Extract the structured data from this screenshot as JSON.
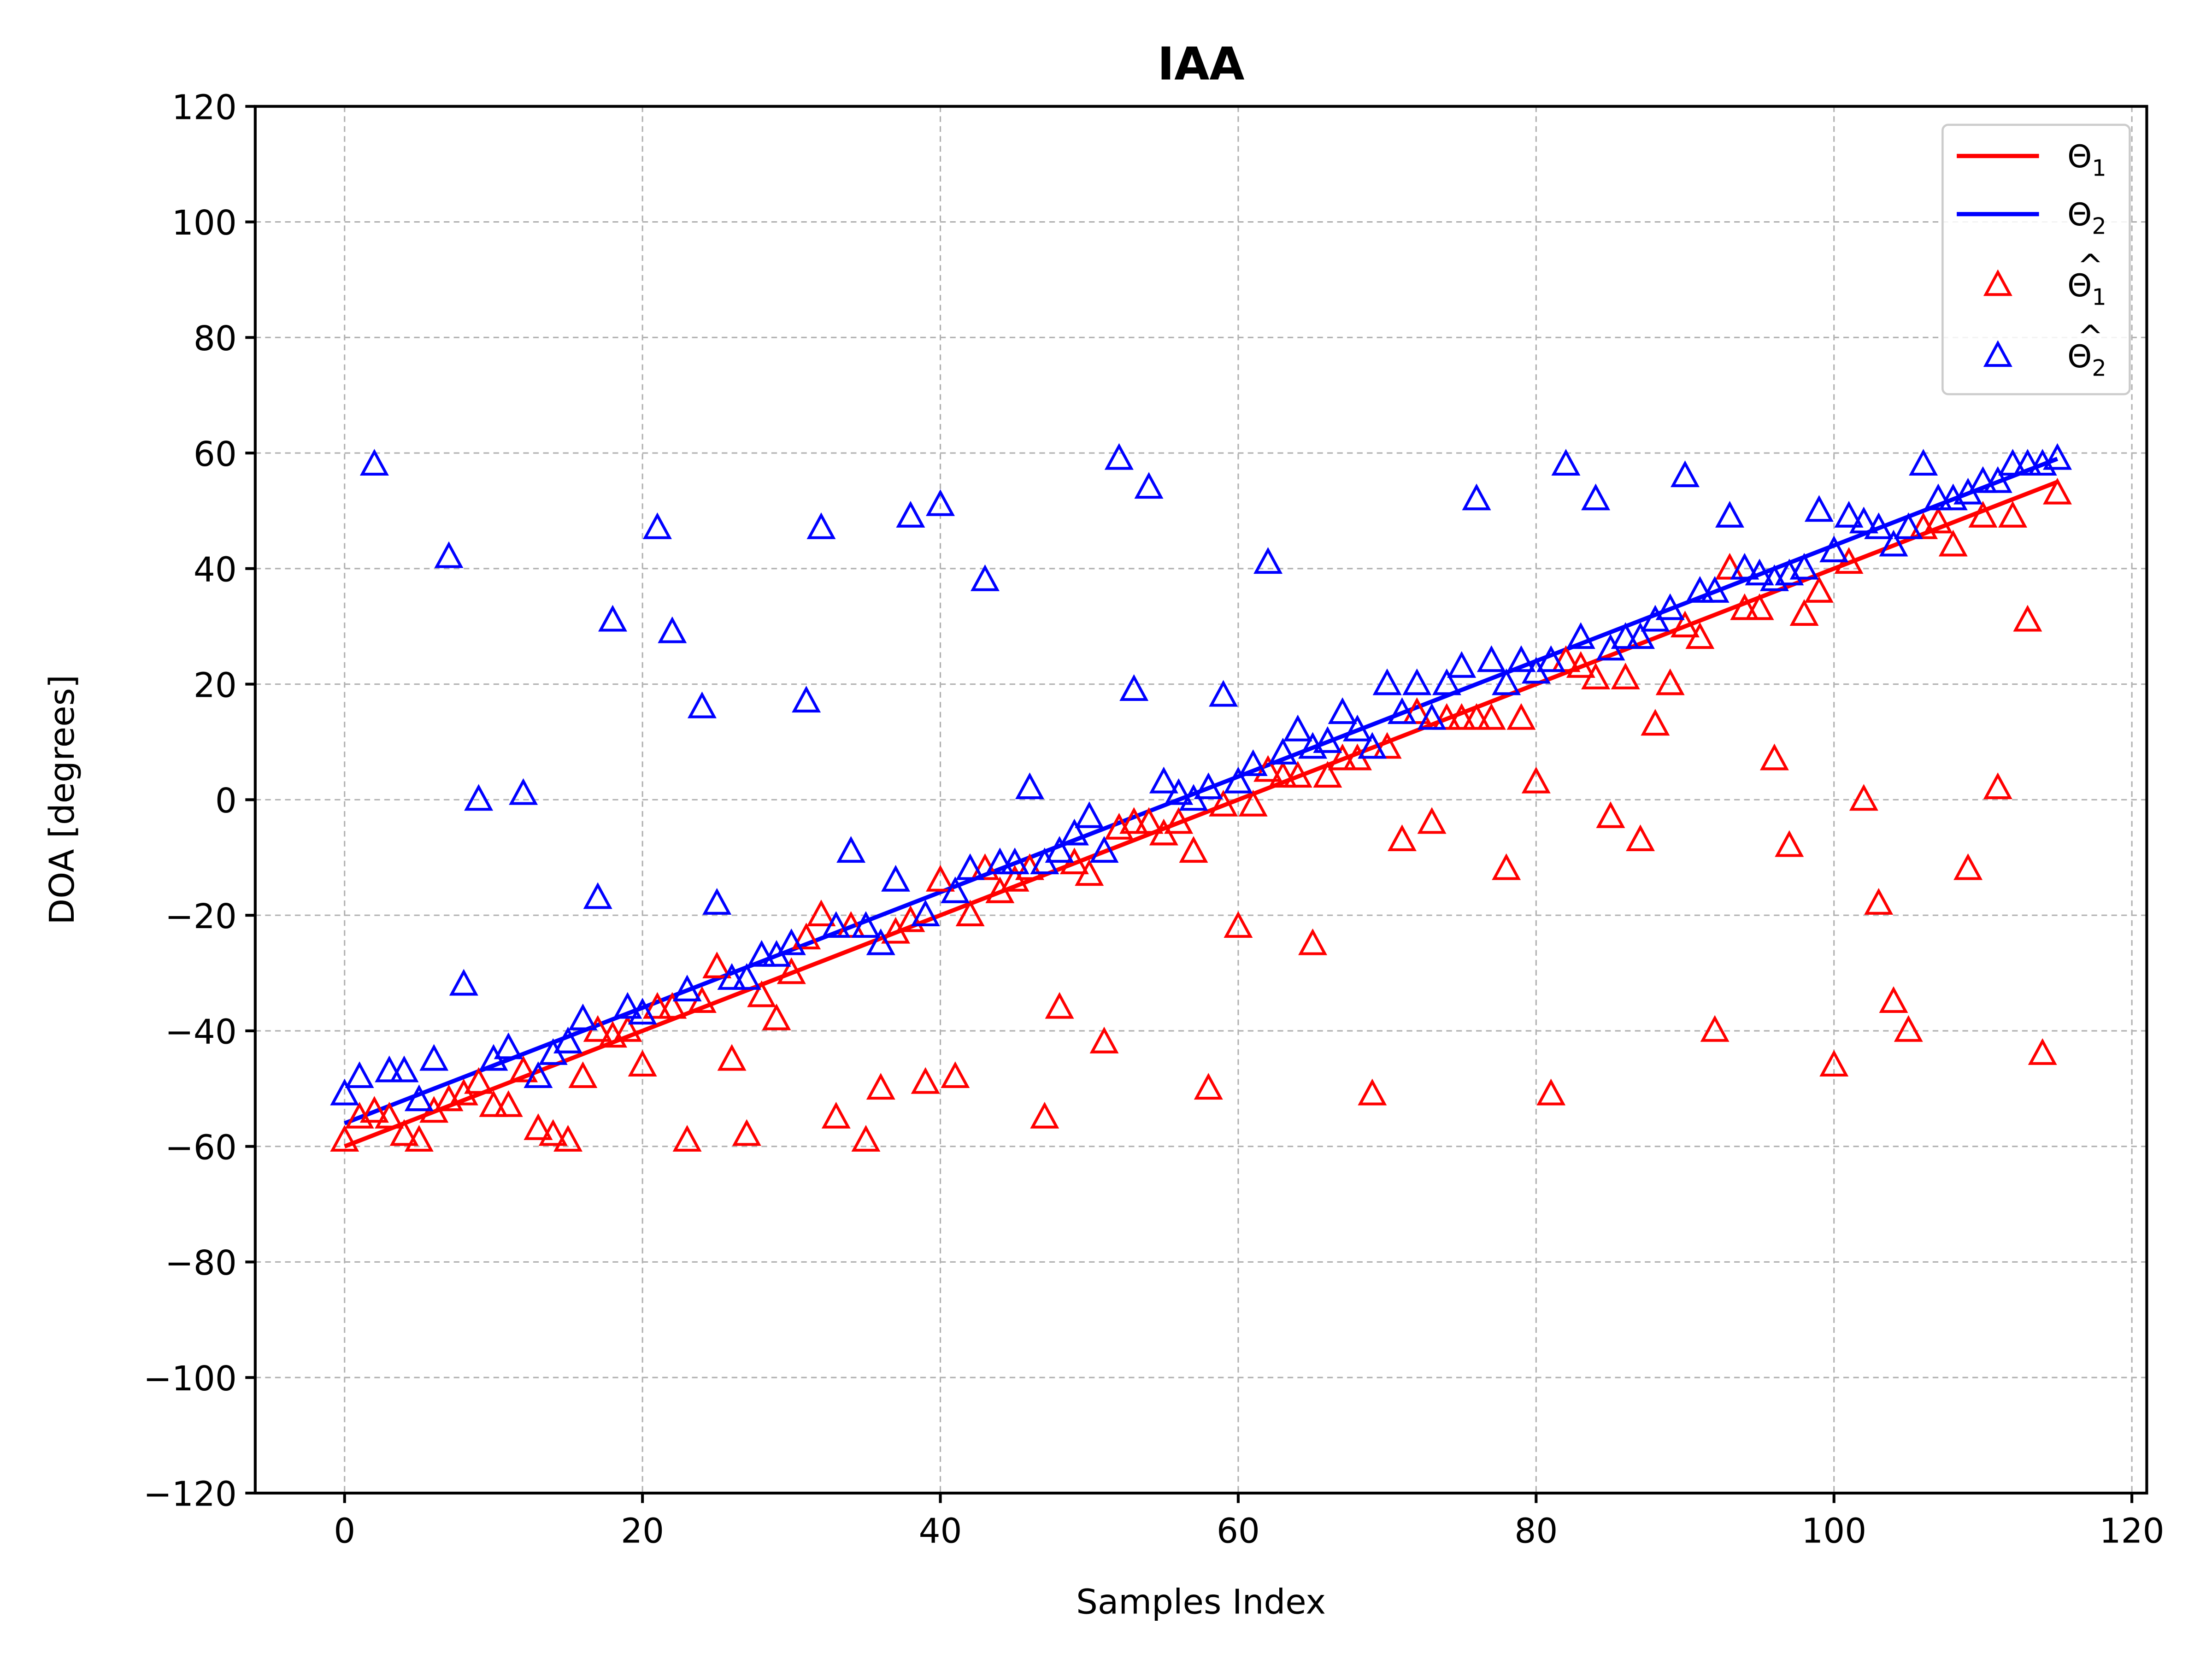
{
  "chart_data": {
    "type": "scatter",
    "title": "IAA",
    "xlabel": "Samples Index",
    "ylabel": "DOA [degrees]",
    "xlim": [
      -6,
      121
    ],
    "ylim": [
      -120,
      120
    ],
    "xticks": [
      0,
      20,
      40,
      60,
      80,
      100,
      120
    ],
    "yticks": [
      -120,
      -100,
      -80,
      -60,
      -40,
      -20,
      0,
      20,
      40,
      60,
      80,
      100,
      120
    ],
    "xtick_labels": [
      "0",
      "20",
      "40",
      "60",
      "80",
      "100",
      "120"
    ],
    "ytick_labels": [
      "−120",
      "−100",
      "−80",
      "−60",
      "−40",
      "−20",
      "0",
      "20",
      "40",
      "60",
      "80",
      "100",
      "120"
    ],
    "grid": true,
    "legend_position": "top-right",
    "series": [
      {
        "name": "Θ1",
        "legend_main": "Θ",
        "legend_sub": "1",
        "legend_hat": false,
        "kind": "line",
        "color": "#ff0000",
        "x": [
          0,
          115
        ],
        "y": [
          -60,
          55
        ]
      },
      {
        "name": "Θ2",
        "legend_main": "Θ",
        "legend_sub": "2",
        "legend_hat": false,
        "kind": "line",
        "color": "#0000ff",
        "x": [
          0,
          115
        ],
        "y": [
          -56,
          59
        ]
      },
      {
        "name": "Θ̂1",
        "legend_main": "Θ",
        "legend_sub": "1",
        "legend_hat": true,
        "kind": "scatter",
        "marker": "triangle",
        "color": "#ff0000",
        "x": [
          0,
          1,
          2,
          3,
          4,
          5,
          6,
          7,
          8,
          9,
          10,
          11,
          12,
          13,
          14,
          15,
          16,
          17,
          18,
          19,
          20,
          21,
          22,
          23,
          24,
          25,
          26,
          27,
          28,
          29,
          30,
          31,
          32,
          33,
          34,
          35,
          36,
          37,
          38,
          39,
          40,
          41,
          42,
          43,
          44,
          45,
          46,
          47,
          48,
          49,
          50,
          51,
          52,
          53,
          54,
          55,
          56,
          57,
          58,
          59,
          60,
          61,
          62,
          63,
          64,
          65,
          66,
          67,
          68,
          69,
          70,
          71,
          72,
          73,
          74,
          75,
          76,
          77,
          78,
          79,
          80,
          81,
          82,
          83,
          84,
          85,
          86,
          87,
          88,
          89,
          90,
          91,
          92,
          93,
          94,
          95,
          96,
          97,
          98,
          99,
          100,
          101,
          102,
          103,
          104,
          105,
          106,
          107,
          108,
          109,
          110,
          111,
          112,
          113,
          114,
          115
        ],
        "y": [
          -59,
          -55,
          -54,
          -55,
          -58,
          -59,
          -54,
          -52,
          -51,
          -49,
          -53,
          -53,
          -47,
          -57,
          -58,
          -59,
          -48,
          -40,
          -41,
          -40,
          -46,
          -36,
          -36,
          -59,
          -35,
          -29,
          -45,
          -58,
          -34,
          -38,
          -30,
          -24,
          -20,
          -55,
          -22,
          -59,
          -50,
          -23,
          -21,
          -49,
          -14,
          -48,
          -20,
          -12,
          -16,
          -14,
          -12,
          -55,
          -36,
          -11,
          -13,
          -42,
          -5,
          -4,
          -4,
          -6,
          -4,
          -9,
          -50,
          -1,
          -22,
          -1,
          5,
          4,
          4,
          -25,
          4,
          7,
          7,
          -51,
          9,
          -7,
          15,
          -4,
          14,
          14,
          14,
          14,
          -12,
          14,
          3,
          -51,
          24,
          23,
          21,
          -3,
          21,
          -7,
          13,
          20,
          30,
          28,
          -40,
          40,
          33,
          33,
          7,
          -8,
          32,
          36,
          -46,
          41,
          0,
          -18,
          -35,
          -40,
          47,
          48,
          44,
          -12,
          49,
          2,
          49,
          31,
          -44,
          53
        ]
      },
      {
        "name": "Θ̂2",
        "legend_main": "Θ",
        "legend_sub": "2",
        "legend_hat": true,
        "kind": "scatter",
        "marker": "triangle",
        "color": "#0000ff",
        "x": [
          0,
          1,
          2,
          3,
          4,
          5,
          6,
          7,
          8,
          9,
          10,
          11,
          12,
          13,
          14,
          15,
          16,
          17,
          18,
          19,
          20,
          21,
          22,
          23,
          24,
          25,
          26,
          27,
          28,
          29,
          30,
          31,
          32,
          33,
          34,
          35,
          36,
          37,
          38,
          39,
          40,
          41,
          42,
          43,
          44,
          45,
          46,
          47,
          48,
          49,
          50,
          51,
          52,
          53,
          54,
          55,
          56,
          57,
          58,
          59,
          60,
          61,
          62,
          63,
          64,
          65,
          66,
          67,
          68,
          69,
          70,
          71,
          72,
          73,
          74,
          75,
          76,
          77,
          78,
          79,
          80,
          81,
          82,
          83,
          84,
          85,
          86,
          87,
          88,
          89,
          90,
          91,
          92,
          93,
          94,
          95,
          96,
          97,
          98,
          99,
          100,
          101,
          102,
          103,
          104,
          105,
          106,
          107,
          108,
          109,
          110,
          111,
          112,
          113,
          114,
          115
        ],
        "y": [
          -51,
          -48,
          58,
          -47,
          -47,
          -52,
          -45,
          42,
          -32,
          0,
          -45,
          -43,
          1,
          -48,
          -44,
          -42,
          -38,
          -17,
          31,
          -36,
          -37,
          47,
          29,
          -33,
          16,
          -18,
          -31,
          -31,
          -27,
          -27,
          -25,
          17,
          47,
          -22,
          -9,
          -22,
          -25,
          -14,
          49,
          -20,
          51,
          -16,
          -12,
          38,
          -11,
          -11,
          2,
          -11,
          -9,
          -6,
          -3,
          -9,
          59,
          19,
          54,
          3,
          1,
          0,
          2,
          18,
          3,
          6,
          41,
          8,
          12,
          9,
          10,
          15,
          12,
          9,
          20,
          15,
          20,
          14,
          20,
          23,
          52,
          24,
          20,
          24,
          22,
          24,
          58,
          28,
          52,
          26,
          28,
          28,
          31,
          33,
          56,
          36,
          36,
          49,
          40,
          39,
          38,
          39,
          40,
          50,
          43,
          49,
          48,
          47,
          44,
          47,
          58,
          52,
          52,
          53,
          55,
          55,
          58,
          58,
          58,
          59
        ]
      }
    ]
  }
}
